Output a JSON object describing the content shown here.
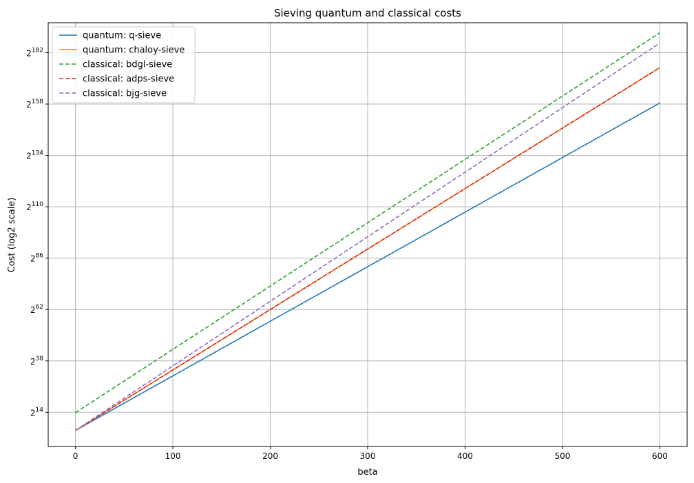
{
  "chart_data": {
    "type": "line",
    "title": "Sieving quantum and classical costs",
    "xlabel": "beta",
    "ylabel": "Cost (log2 scale)",
    "xlim": [
      -28,
      628
    ],
    "ylim": [
      -2,
      196
    ],
    "y_scale": "log2",
    "grid": true,
    "legend_position": "top-left",
    "xticks": [
      0,
      100,
      200,
      300,
      400,
      500,
      600
    ],
    "xtick_labels": [
      "0",
      "100",
      "200",
      "300",
      "400",
      "500",
      "600"
    ],
    "yticks": [
      14,
      38,
      62,
      86,
      110,
      134,
      158,
      182
    ],
    "ytick_labels": [
      {
        "base": "2",
        "exp": "14"
      },
      {
        "base": "2",
        "exp": "38"
      },
      {
        "base": "2",
        "exp": "62"
      },
      {
        "base": "2",
        "exp": "86"
      },
      {
        "base": "2",
        "exp": "110"
      },
      {
        "base": "2",
        "exp": "134"
      },
      {
        "base": "2",
        "exp": "158"
      },
      {
        "base": "2",
        "exp": "182"
      }
    ],
    "series": [
      {
        "name": "quantum: q-sieve",
        "color": "#1f77b4",
        "dash": "solid",
        "x": [
          0,
          600
        ],
        "y": [
          5.5,
          158.5
        ]
      },
      {
        "name": "quantum: chaloy-sieve",
        "color": "#ff7f0e",
        "dash": "solid",
        "x": [
          0,
          600
        ],
        "y": [
          5.5,
          175
        ]
      },
      {
        "name": "classical: bdgl-sieve",
        "color": "#2ca02c",
        "dash": "dashed",
        "x": [
          0,
          600
        ],
        "y": [
          13.8,
          191.3
        ]
      },
      {
        "name": "classical: adps-sieve",
        "color": "#d62728",
        "dash": "dashed",
        "x": [
          0,
          600
        ],
        "y": [
          5.5,
          175
        ]
      },
      {
        "name": "classical: bjg-sieve",
        "color": "#9467bd",
        "dash": "dashed",
        "x": [
          0,
          600
        ],
        "y": [
          5.5,
          186.5
        ]
      }
    ]
  }
}
